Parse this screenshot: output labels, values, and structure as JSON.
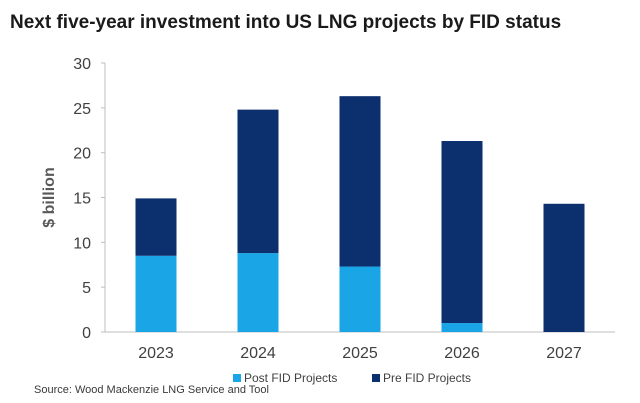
{
  "chart_data": {
    "type": "bar",
    "stacked": true,
    "title": "Next five-year investment into US LNG projects by FID status",
    "xlabel": "",
    "ylabel": "$ billion",
    "categories": [
      "2023",
      "2024",
      "2025",
      "2026",
      "2027"
    ],
    "series": [
      {
        "name": "Post FID Projects",
        "values": [
          8.5,
          8.8,
          7.3,
          1.0,
          0.0
        ],
        "color": "#1aa6e6"
      },
      {
        "name": "Pre FID Projects",
        "values": [
          6.4,
          16.0,
          19.0,
          20.3,
          14.3
        ],
        "color": "#0c2f6e"
      }
    ],
    "ylim": [
      0,
      30
    ],
    "yticks": [
      0,
      5,
      10,
      15,
      20,
      25,
      30
    ],
    "grid": false,
    "legend": "bottom",
    "source": "Source: Wood Mackenzie LNG Service and Tool"
  }
}
